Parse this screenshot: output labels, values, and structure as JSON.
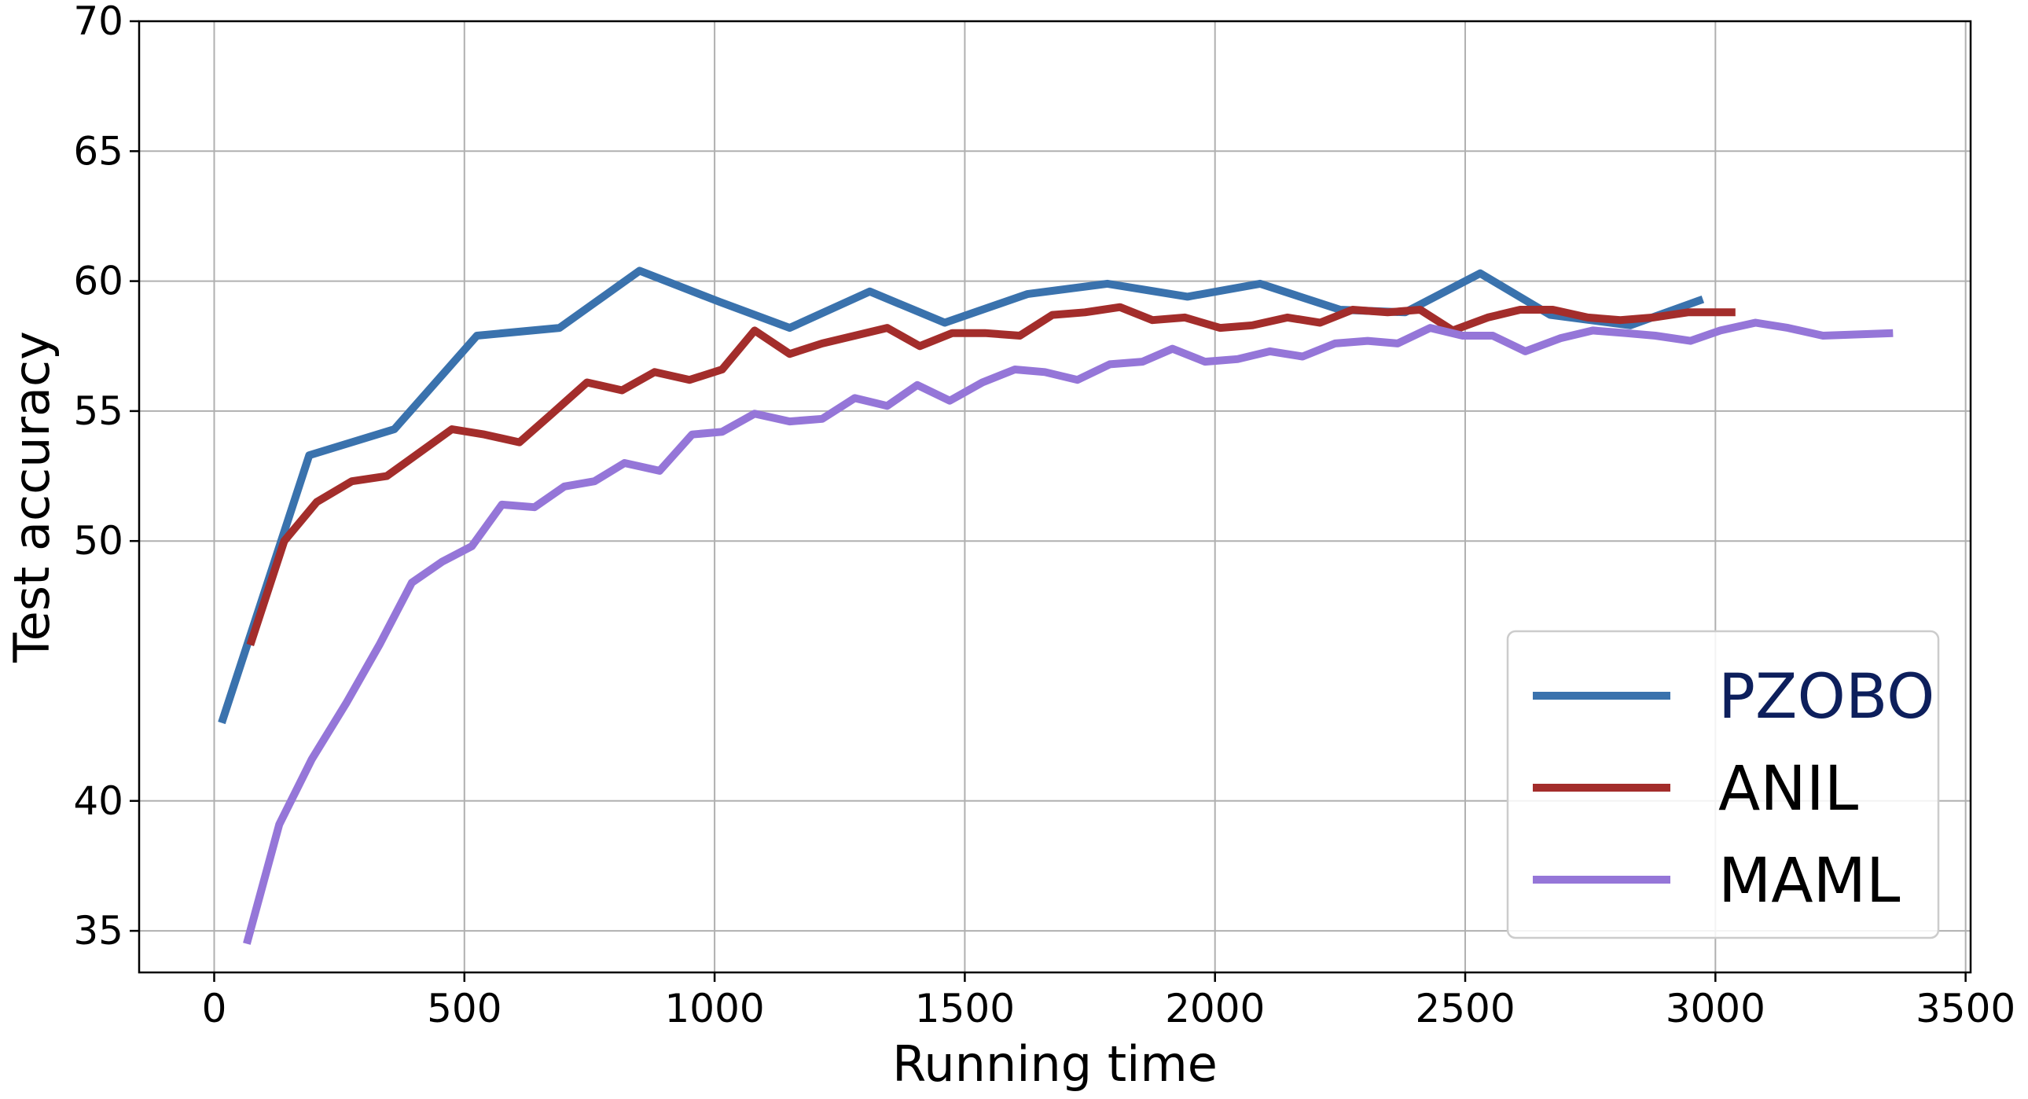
{
  "chart_data": {
    "type": "line",
    "xlabel": "Running time",
    "ylabel": "Test accuracy",
    "xlim": [
      -150,
      3510
    ],
    "ylim": [
      33.4,
      70
    ],
    "xticks": [
      0,
      500,
      1000,
      1500,
      2000,
      2500,
      3000,
      3500
    ],
    "yticks": [
      35,
      40,
      50,
      55,
      60,
      65,
      70
    ],
    "grid": true,
    "legend_position": "lower-right",
    "legend_label_colors": {
      "PZOBO": "#0d1f5c",
      "ANIL": "#000000",
      "MAML": "#000000"
    },
    "series": [
      {
        "name": "PZOBO",
        "color": "#3a72ad",
        "x": [
          15,
          190,
          360,
          525,
          690,
          850,
          1010,
          1150,
          1310,
          1460,
          1625,
          1785,
          1945,
          2090,
          2250,
          2380,
          2530,
          2670,
          2830,
          2975
        ],
        "y": [
          43.0,
          53.3,
          54.3,
          57.9,
          58.2,
          60.4,
          59.2,
          58.2,
          59.6,
          58.4,
          59.5,
          59.9,
          59.4,
          59.9,
          58.9,
          58.8,
          60.3,
          58.7,
          58.3,
          59.3
        ]
      },
      {
        "name": "ANIL",
        "color": "#a32d2b",
        "x": [
          72,
          140,
          205,
          275,
          345,
          410,
          475,
          540,
          610,
          675,
          745,
          815,
          880,
          950,
          1015,
          1080,
          1150,
          1215,
          1280,
          1345,
          1410,
          1475,
          1540,
          1610,
          1675,
          1740,
          1810,
          1875,
          1940,
          2010,
          2075,
          2145,
          2210,
          2275,
          2345,
          2410,
          2475,
          2545,
          2610,
          2675,
          2745,
          2810,
          2875,
          2945,
          3010,
          3040
        ],
        "y": [
          46.0,
          50.0,
          51.5,
          52.3,
          52.5,
          53.4,
          54.3,
          54.1,
          53.8,
          54.9,
          56.1,
          55.8,
          56.5,
          56.2,
          56.6,
          58.1,
          57.2,
          57.6,
          57.9,
          58.2,
          57.5,
          58.0,
          58.0,
          57.9,
          58.7,
          58.8,
          59.0,
          58.5,
          58.6,
          58.2,
          58.3,
          58.6,
          58.4,
          58.9,
          58.8,
          58.9,
          58.1,
          58.6,
          58.9,
          58.9,
          58.6,
          58.5,
          58.6,
          58.8,
          58.8,
          58.8
        ]
      },
      {
        "name": "MAML",
        "color": "#9576d8",
        "x": [
          65,
          130,
          195,
          265,
          330,
          395,
          455,
          515,
          575,
          640,
          700,
          760,
          820,
          890,
          955,
          1015,
          1080,
          1150,
          1215,
          1280,
          1345,
          1405,
          1470,
          1535,
          1600,
          1660,
          1725,
          1790,
          1855,
          1915,
          1980,
          2045,
          2110,
          2175,
          2240,
          2305,
          2365,
          2430,
          2495,
          2555,
          2620,
          2690,
          2755,
          2820,
          2880,
          2950,
          3010,
          3080,
          3145,
          3215,
          3355
        ],
        "y": [
          34.5,
          39.1,
          41.6,
          43.8,
          46.0,
          48.4,
          49.2,
          49.8,
          51.4,
          51.3,
          52.1,
          52.3,
          53.0,
          52.7,
          54.1,
          54.2,
          54.9,
          54.6,
          54.7,
          55.5,
          55.2,
          56.0,
          55.4,
          56.1,
          56.6,
          56.5,
          56.2,
          56.8,
          56.9,
          57.4,
          56.9,
          57.0,
          57.3,
          57.1,
          57.6,
          57.7,
          57.6,
          58.2,
          57.9,
          57.9,
          57.3,
          57.8,
          58.1,
          58.0,
          57.9,
          57.7,
          58.1,
          58.4,
          58.2,
          57.9,
          58.0
        ]
      }
    ]
  }
}
